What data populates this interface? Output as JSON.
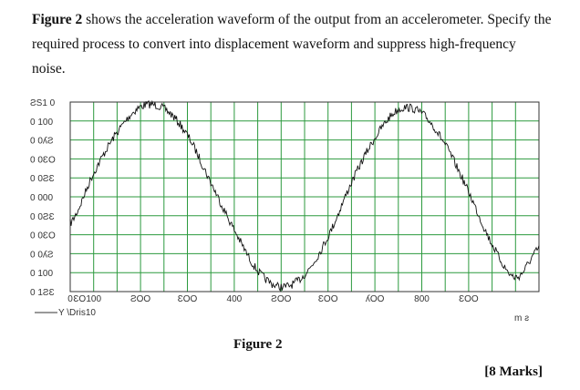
{
  "question": {
    "figure_ref": "Figure 2",
    "text": " shows the acceleration waveform of the output from an accelerometer. Specify the required process to convert into displacement waveform and suppress high-frequency noise."
  },
  "figure": {
    "caption": "Figure 2",
    "y_tick_labels": [
      "ƧS1 0",
      "0 100",
      "0 0ʎƧ",
      "0 0ƐO",
      "0 0ƧƐ",
      "0 000",
      "0 0ƧƐ",
      "0 0ƐO",
      "0 0ʎƧ",
      "0 100",
      "0 1ƧƐ"
    ],
    "x_tick_labels": [
      "0",
      "ƐO",
      "100",
      "ƧOO",
      "ƐOO",
      "400",
      "ƧOO",
      "ƐOO",
      "ʎOO",
      "800",
      "ƐOO"
    ],
    "legend_text": "Y \\Dris10",
    "x_unit": "m ƨ"
  },
  "chart_data": {
    "type": "line",
    "xlabel": "m ƨ",
    "ylabel": "",
    "xlim": [
      0,
      1000
    ],
    "ylim": [
      -1,
      1
    ],
    "grid": true,
    "series": [
      {
        "x": [
          0,
          50,
          100,
          150,
          200,
          250,
          300,
          350,
          400,
          450,
          500,
          550,
          600,
          650,
          700,
          750,
          800,
          850,
          900,
          950,
          1000
        ],
        "values": [
          -0.28,
          0.25,
          0.68,
          0.95,
          0.93,
          0.65,
          0.15,
          -0.35,
          -0.78,
          -0.95,
          -0.82,
          -0.42,
          0.15,
          0.62,
          0.92,
          0.88,
          0.55,
          0.05,
          -0.5,
          -0.85,
          -0.55
        ]
      }
    ]
  },
  "marks": "[8 Marks]"
}
